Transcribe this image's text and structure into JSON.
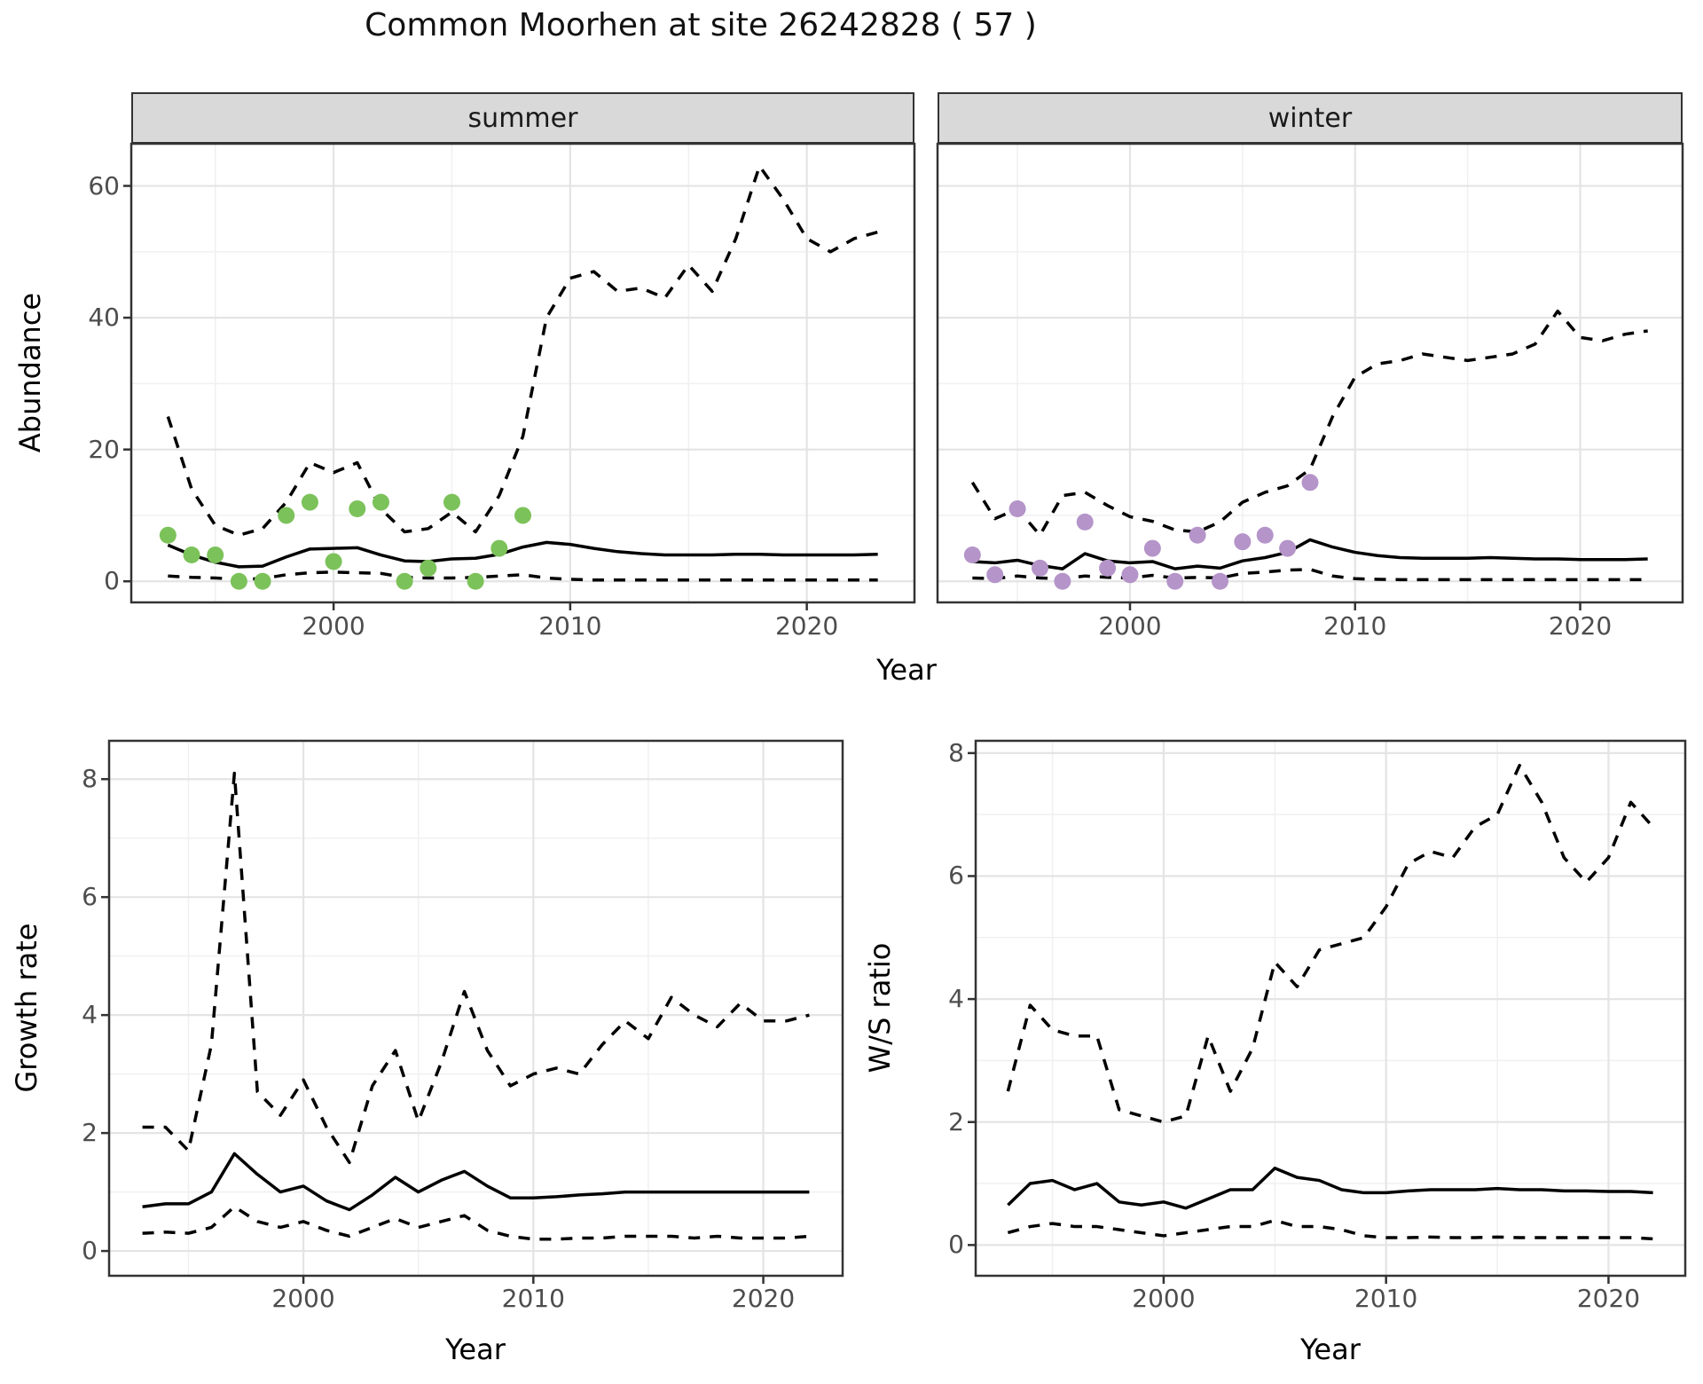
{
  "chart_data": {
    "figure_title": "Common Moorhen at site 26242828 ( 57 )",
    "shared_xlabel": "Year",
    "line_styles": {
      "median": "solid",
      "credible_interval": "dashed"
    },
    "panels": [
      {
        "id": "abundance-summer",
        "type": "line",
        "facet_label": "summer",
        "ylabel": "Abundance",
        "xlabel": "Year",
        "ylim": [
          -3.2,
          66.4
        ],
        "xlim": [
          1991.45,
          2024.55
        ],
        "yticks": [
          0,
          20,
          40,
          60
        ],
        "yticks_minor": [
          10,
          30,
          50
        ],
        "xticks": [
          2000,
          2010,
          2020
        ],
        "xticks_minor": [
          1995,
          2005,
          2015
        ],
        "years": [
          1993,
          1994,
          1995,
          1996,
          1997,
          1998,
          1999,
          2000,
          2001,
          2002,
          2003,
          2004,
          2005,
          2006,
          2007,
          2008,
          2009,
          2010,
          2011,
          2012,
          2013,
          2014,
          2015,
          2016,
          2017,
          2018,
          2019,
          2020,
          2021,
          2022,
          2023
        ],
        "series": [
          {
            "name": "upper_ci",
            "style": "dashed",
            "values": [
              25,
              14,
              8.5,
              7,
              8,
              12,
              18,
              16.5,
              18,
              11,
              7.5,
              8,
              10.5,
              7.5,
              13,
              22,
              40,
              46,
              47,
              44,
              44.5,
              43,
              48,
              44,
              52,
              63,
              58,
              52,
              50,
              52,
              53
            ]
          },
          {
            "name": "median",
            "style": "solid",
            "values": [
              5.5,
              4.0,
              2.9,
              2.2,
              2.3,
              3.7,
              4.9,
              5.0,
              5.1,
              4.0,
              3.1,
              3.0,
              3.4,
              3.5,
              4.1,
              5.2,
              5.9,
              5.6,
              5.0,
              4.5,
              4.2,
              4.0,
              4.0,
              4.0,
              4.1,
              4.1,
              4.0,
              4.0,
              4.0,
              4.0,
              4.1
            ]
          },
          {
            "name": "lower_ci",
            "style": "dashed",
            "values": [
              0.8,
              0.6,
              0.5,
              0.3,
              0.4,
              1.0,
              1.3,
              1.4,
              1.3,
              1.2,
              0.6,
              0.5,
              0.5,
              0.6,
              0.8,
              1.0,
              0.5,
              0.3,
              0.2,
              0.2,
              0.2,
              0.2,
              0.2,
              0.2,
              0.2,
              0.2,
              0.2,
              0.2,
              0.2,
              0.2,
              0.2
            ]
          }
        ],
        "points": {
          "name": "observed_counts",
          "color": "#7cc25a",
          "years": [
            1993,
            1994,
            1995,
            1996,
            1997,
            1998,
            1999,
            2000,
            2001,
            2002,
            2003,
            2004,
            2005,
            2006,
            2007,
            2008
          ],
          "values": [
            7,
            4,
            4,
            0,
            0,
            10,
            12,
            3,
            11,
            12,
            0,
            2,
            12,
            0,
            5,
            10
          ]
        }
      },
      {
        "id": "abundance-winter",
        "type": "line",
        "facet_label": "winter",
        "ylabel": "Abundance",
        "xlabel": "Year",
        "ylim": [
          -3.2,
          66.4
        ],
        "xlim": [
          1991.45,
          2024.55
        ],
        "yticks": [
          0,
          20,
          40,
          60
        ],
        "yticks_minor": [
          10,
          30,
          50
        ],
        "xticks": [
          2000,
          2010,
          2020
        ],
        "xticks_minor": [
          1995,
          2005,
          2015
        ],
        "years": [
          1993,
          1994,
          1995,
          1996,
          1997,
          1998,
          1999,
          2000,
          2001,
          2002,
          2003,
          2004,
          2005,
          2006,
          2007,
          2008,
          2009,
          2010,
          2011,
          2012,
          2013,
          2014,
          2015,
          2016,
          2017,
          2018,
          2019,
          2020,
          2021,
          2022,
          2023
        ],
        "series": [
          {
            "name": "upper_ci",
            "style": "dashed",
            "values": [
              15,
              9.5,
              11,
              7,
              13,
              13.5,
              11.5,
              9.8,
              9.1,
              7.8,
              7.5,
              9,
              12,
              13.5,
              14.5,
              17,
              25,
              31,
              33,
              33.5,
              34.5,
              34,
              33.5,
              34,
              34.5,
              36,
              41,
              37,
              36.5,
              37.5,
              38
            ]
          },
          {
            "name": "median",
            "style": "solid",
            "values": [
              3.0,
              2.8,
              3.2,
              2.4,
              1.9,
              4.2,
              3.1,
              2.8,
              3.0,
              1.9,
              2.3,
              2.0,
              3.1,
              3.6,
              4.4,
              6.3,
              5.2,
              4.4,
              3.9,
              3.6,
              3.5,
              3.5,
              3.5,
              3.6,
              3.5,
              3.4,
              3.4,
              3.3,
              3.3,
              3.3,
              3.4
            ]
          },
          {
            "name": "lower_ci",
            "style": "dashed",
            "values": [
              0.5,
              0.4,
              0.8,
              0.5,
              0.4,
              0.8,
              0.6,
              0.5,
              0.9,
              0.5,
              0.6,
              0.5,
              1.2,
              1.4,
              1.7,
              1.8,
              0.8,
              0.4,
              0.3,
              0.25,
              0.25,
              0.25,
              0.25,
              0.25,
              0.25,
              0.25,
              0.25,
              0.25,
              0.25,
              0.25,
              0.25
            ]
          }
        ],
        "points": {
          "name": "observed_counts",
          "color": "#b494c9",
          "years": [
            1993,
            1994,
            1995,
            1996,
            1997,
            1998,
            1999,
            2000,
            2001,
            2002,
            2003,
            2004,
            2005,
            2006,
            2007,
            2008
          ],
          "values": [
            4,
            1,
            11,
            2,
            0,
            9,
            2,
            1,
            5,
            0,
            7,
            0,
            6,
            7,
            5,
            15
          ]
        }
      },
      {
        "id": "growth-rate",
        "type": "line",
        "facet_label": "",
        "ylabel": "Growth rate",
        "xlabel": "Year",
        "ylim": [
          -0.42,
          8.65
        ],
        "xlim": [
          1991.55,
          2023.45
        ],
        "yticks": [
          0,
          2,
          4,
          6,
          8
        ],
        "yticks_minor": [
          1,
          3,
          5,
          7
        ],
        "xticks": [
          2000,
          2010,
          2020
        ],
        "xticks_minor": [
          1995,
          2005,
          2015
        ],
        "years": [
          1993,
          1994,
          1995,
          1996,
          1997,
          1998,
          1999,
          2000,
          2001,
          2002,
          2003,
          2004,
          2005,
          2006,
          2007,
          2008,
          2009,
          2010,
          2011,
          2012,
          2013,
          2014,
          2015,
          2016,
          2017,
          2018,
          2019,
          2020,
          2021,
          2022
        ],
        "series": [
          {
            "name": "upper_ci",
            "style": "dashed",
            "values": [
              2.1,
              2.1,
              1.7,
              3.5,
              8.1,
              2.7,
              2.3,
              2.9,
              2.1,
              1.5,
              2.8,
              3.4,
              2.2,
              3.2,
              4.4,
              3.4,
              2.8,
              3.0,
              3.1,
              3.0,
              3.5,
              3.9,
              3.6,
              4.3,
              4.0,
              3.8,
              4.2,
              3.9,
              3.9,
              4.0
            ]
          },
          {
            "name": "median",
            "style": "solid",
            "values": [
              0.75,
              0.8,
              0.8,
              1.0,
              1.65,
              1.3,
              1.0,
              1.1,
              0.85,
              0.7,
              0.95,
              1.25,
              1.0,
              1.2,
              1.35,
              1.1,
              0.9,
              0.9,
              0.92,
              0.95,
              0.97,
              1.0,
              1.0,
              1.0,
              1.0,
              1.0,
              1.0,
              1.0,
              1.0,
              1.0
            ]
          },
          {
            "name": "lower_ci",
            "style": "dashed",
            "values": [
              0.3,
              0.32,
              0.3,
              0.4,
              0.75,
              0.5,
              0.4,
              0.5,
              0.35,
              0.25,
              0.4,
              0.55,
              0.4,
              0.5,
              0.6,
              0.35,
              0.25,
              0.2,
              0.2,
              0.22,
              0.22,
              0.25,
              0.25,
              0.25,
              0.22,
              0.25,
              0.22,
              0.22,
              0.22,
              0.25
            ]
          }
        ],
        "points": null
      },
      {
        "id": "ws-ratio",
        "type": "line",
        "facet_label": "",
        "ylabel": "W/S ratio",
        "xlabel": "Year",
        "ylim": [
          -0.5,
          8.2
        ],
        "xlim": [
          1991.55,
          2023.45
        ],
        "yticks": [
          0,
          2,
          4,
          6,
          8
        ],
        "yticks_minor": [
          1,
          3,
          5,
          7
        ],
        "xticks": [
          2000,
          2010,
          2020
        ],
        "xticks_minor": [
          1995,
          2005,
          2015
        ],
        "years": [
          1993,
          1994,
          1995,
          1996,
          1997,
          1998,
          1999,
          2000,
          2001,
          2002,
          2003,
          2004,
          2005,
          2006,
          2007,
          2008,
          2009,
          2010,
          2011,
          2012,
          2013,
          2014,
          2015,
          2016,
          2017,
          2018,
          2019,
          2020,
          2021,
          2022
        ],
        "series": [
          {
            "name": "upper_ci",
            "style": "dashed",
            "values": [
              2.5,
              3.9,
              3.5,
              3.4,
              3.4,
              2.2,
              2.1,
              2.0,
              2.1,
              3.4,
              2.5,
              3.2,
              4.6,
              4.2,
              4.8,
              4.9,
              5.0,
              5.5,
              6.2,
              6.4,
              6.3,
              6.8,
              7.0,
              7.8,
              7.2,
              6.3,
              5.9,
              6.3,
              7.2,
              6.8
            ]
          },
          {
            "name": "median",
            "style": "solid",
            "values": [
              0.65,
              1.0,
              1.05,
              0.9,
              1.0,
              0.7,
              0.65,
              0.7,
              0.6,
              0.75,
              0.9,
              0.9,
              1.25,
              1.1,
              1.05,
              0.9,
              0.85,
              0.85,
              0.88,
              0.9,
              0.9,
              0.9,
              0.92,
              0.9,
              0.9,
              0.88,
              0.88,
              0.87,
              0.87,
              0.85
            ]
          },
          {
            "name": "lower_ci",
            "style": "dashed",
            "values": [
              0.2,
              0.3,
              0.35,
              0.3,
              0.3,
              0.25,
              0.2,
              0.15,
              0.2,
              0.25,
              0.3,
              0.3,
              0.4,
              0.3,
              0.3,
              0.25,
              0.15,
              0.12,
              0.12,
              0.13,
              0.12,
              0.12,
              0.13,
              0.12,
              0.12,
              0.12,
              0.12,
              0.12,
              0.12,
              0.1
            ]
          }
        ],
        "points": null
      }
    ],
    "theme": {
      "strip_fill": "#d9d9d9",
      "panel_border": "#333333",
      "grid_major": "#e4e4e4",
      "grid_minor": "#f0f0f0",
      "tick_label_color": "#4d4d4d",
      "line_color": "#000000"
    }
  }
}
